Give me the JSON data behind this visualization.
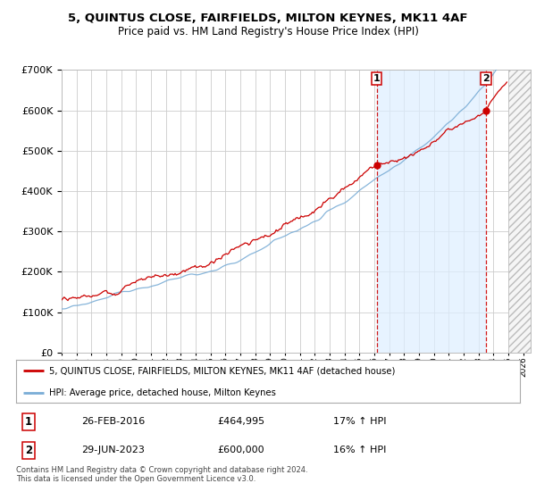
{
  "title": "5, QUINTUS CLOSE, FAIRFIELDS, MILTON KEYNES, MK11 4AF",
  "subtitle": "Price paid vs. HM Land Registry's House Price Index (HPI)",
  "red_label": "5, QUINTUS CLOSE, FAIRFIELDS, MILTON KEYNES, MK11 4AF (detached house)",
  "blue_label": "HPI: Average price, detached house, Milton Keynes",
  "transaction1": {
    "label": "1",
    "date": "26-FEB-2016",
    "price": "£464,995",
    "hpi": "17% ↑ HPI"
  },
  "transaction2": {
    "label": "2",
    "date": "29-JUN-2023",
    "price": "£600,000",
    "hpi": "16% ↑ HPI"
  },
  "footer": "Contains HM Land Registry data © Crown copyright and database right 2024.\nThis data is licensed under the Open Government Licence v3.0.",
  "ylim": [
    0,
    700000
  ],
  "yticks": [
    0,
    100000,
    200000,
    300000,
    400000,
    500000,
    600000,
    700000
  ],
  "background_color": "#ffffff",
  "grid_color": "#cccccc",
  "red_color": "#cc0000",
  "blue_color": "#7aadd6",
  "shade_color": "#ddeeff",
  "marker1_x": 2016.15,
  "marker1_y": 464995,
  "marker2_x": 2023.49,
  "marker2_y": 600000,
  "xmin": 1995,
  "xmax": 2026.5
}
